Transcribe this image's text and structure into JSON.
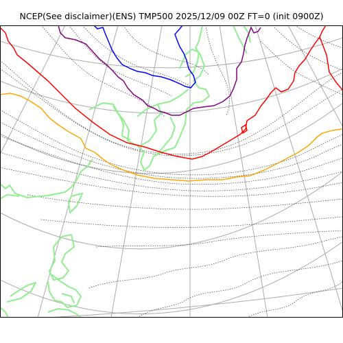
{
  "title": "NCEP(See disclaimer)(ENS) TMP500 2025/12/09 00Z FT=0 (init 0900Z)",
  "colors": {
    "background": "#ffffff",
    "frame": "#000000",
    "graticule": "#aaaaaa",
    "coastline": "#90ee90",
    "contour": "#333333",
    "red_isotherm": "#ff0000",
    "orange_isotherm": "#ffa500",
    "purple_isotherm": "#800080",
    "blue_isotherm": "#0000ff"
  }
}
